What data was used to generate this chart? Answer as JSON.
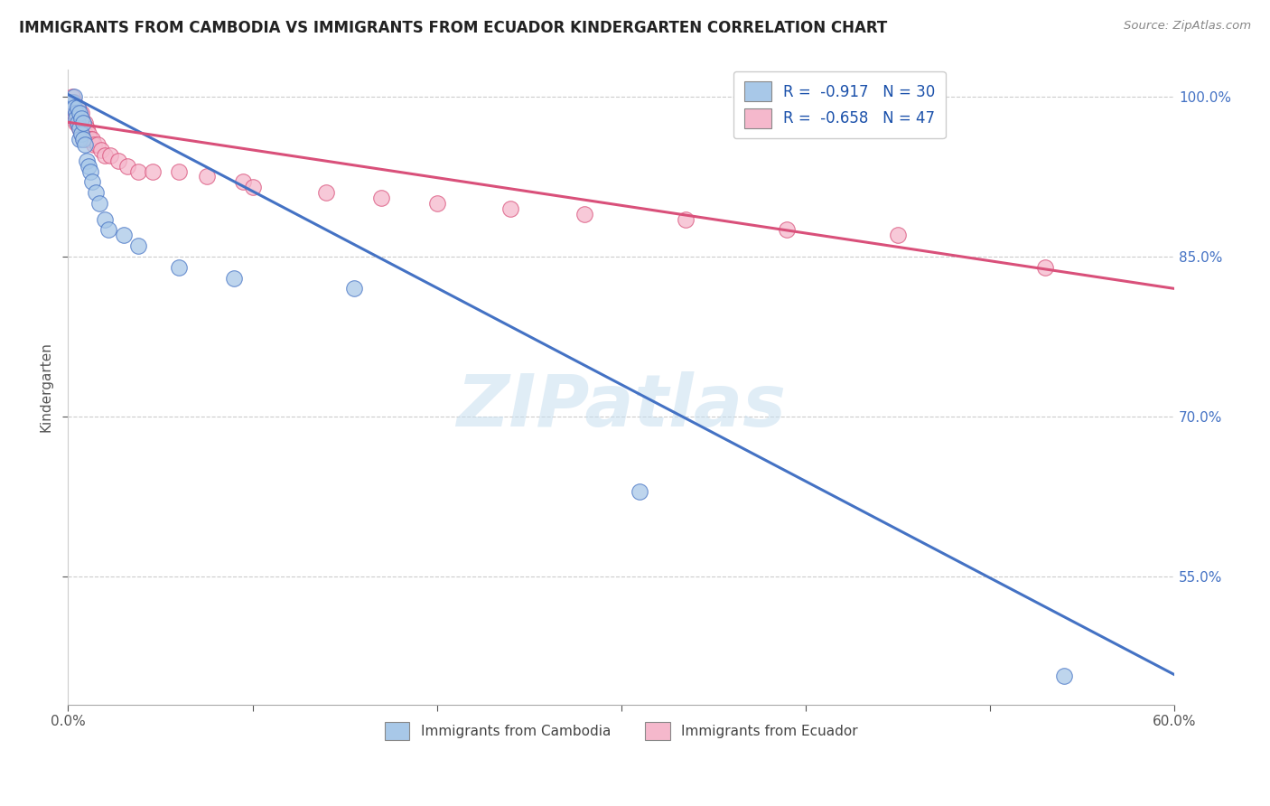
{
  "title": "IMMIGRANTS FROM CAMBODIA VS IMMIGRANTS FROM ECUADOR KINDERGARTEN CORRELATION CHART",
  "source": "Source: ZipAtlas.com",
  "xlabel": "",
  "ylabel": "Kindergarten",
  "xlim": [
    0.0,
    0.6
  ],
  "ylim": [
    0.43,
    1.025
  ],
  "yticks": [
    0.55,
    0.7,
    0.85,
    1.0
  ],
  "ytick_labels": [
    "55.0%",
    "70.0%",
    "85.0%",
    "100.0%"
  ],
  "xticks": [
    0.0,
    0.1,
    0.2,
    0.3,
    0.4,
    0.5,
    0.6
  ],
  "xtick_labels": [
    "0.0%",
    "",
    "",
    "",
    "",
    "",
    "60.0%"
  ],
  "cambodia_color": "#a8c8e8",
  "ecuador_color": "#f5b8cc",
  "cambodia_line_color": "#4472c4",
  "ecuador_line_color": "#d9507a",
  "legend_R_cambodia": "R =  -0.917",
  "legend_N_cambodia": "N = 30",
  "legend_R_ecuador": "R =  -0.658",
  "legend_N_ecuador": "N = 47",
  "watermark": "ZIPatlas",
  "cambodia_line_x0": 0.0,
  "cambodia_line_y0": 1.002,
  "cambodia_line_x1": 0.6,
  "cambodia_line_y1": 0.458,
  "ecuador_line_x0": 0.0,
  "ecuador_line_y0": 0.976,
  "ecuador_line_x1": 0.6,
  "ecuador_line_y1": 0.82,
  "cambodia_x": [
    0.002,
    0.003,
    0.003,
    0.004,
    0.004,
    0.005,
    0.005,
    0.006,
    0.006,
    0.006,
    0.007,
    0.007,
    0.008,
    0.008,
    0.009,
    0.01,
    0.011,
    0.012,
    0.013,
    0.015,
    0.017,
    0.02,
    0.022,
    0.03,
    0.038,
    0.06,
    0.09,
    0.155,
    0.31,
    0.54
  ],
  "cambodia_y": [
    0.995,
    1.0,
    0.99,
    0.985,
    0.98,
    0.99,
    0.975,
    0.985,
    0.97,
    0.96,
    0.98,
    0.965,
    0.975,
    0.96,
    0.955,
    0.94,
    0.935,
    0.93,
    0.92,
    0.91,
    0.9,
    0.885,
    0.875,
    0.87,
    0.86,
    0.84,
    0.83,
    0.82,
    0.63,
    0.457
  ],
  "ecuador_x": [
    0.002,
    0.002,
    0.003,
    0.003,
    0.004,
    0.004,
    0.005,
    0.005,
    0.005,
    0.006,
    0.006,
    0.006,
    0.007,
    0.007,
    0.007,
    0.008,
    0.008,
    0.008,
    0.009,
    0.009,
    0.01,
    0.01,
    0.011,
    0.012,
    0.013,
    0.014,
    0.016,
    0.018,
    0.02,
    0.023,
    0.027,
    0.032,
    0.038,
    0.046,
    0.06,
    0.075,
    0.095,
    0.1,
    0.14,
    0.17,
    0.2,
    0.24,
    0.28,
    0.335,
    0.39,
    0.45,
    0.53
  ],
  "ecuador_y": [
    1.0,
    0.99,
    0.995,
    0.985,
    0.985,
    0.975,
    0.99,
    0.985,
    0.975,
    0.985,
    0.975,
    0.97,
    0.985,
    0.975,
    0.965,
    0.975,
    0.97,
    0.96,
    0.975,
    0.965,
    0.97,
    0.96,
    0.965,
    0.96,
    0.96,
    0.955,
    0.955,
    0.95,
    0.945,
    0.945,
    0.94,
    0.935,
    0.93,
    0.93,
    0.93,
    0.925,
    0.92,
    0.915,
    0.91,
    0.905,
    0.9,
    0.895,
    0.89,
    0.885,
    0.875,
    0.87,
    0.84
  ]
}
